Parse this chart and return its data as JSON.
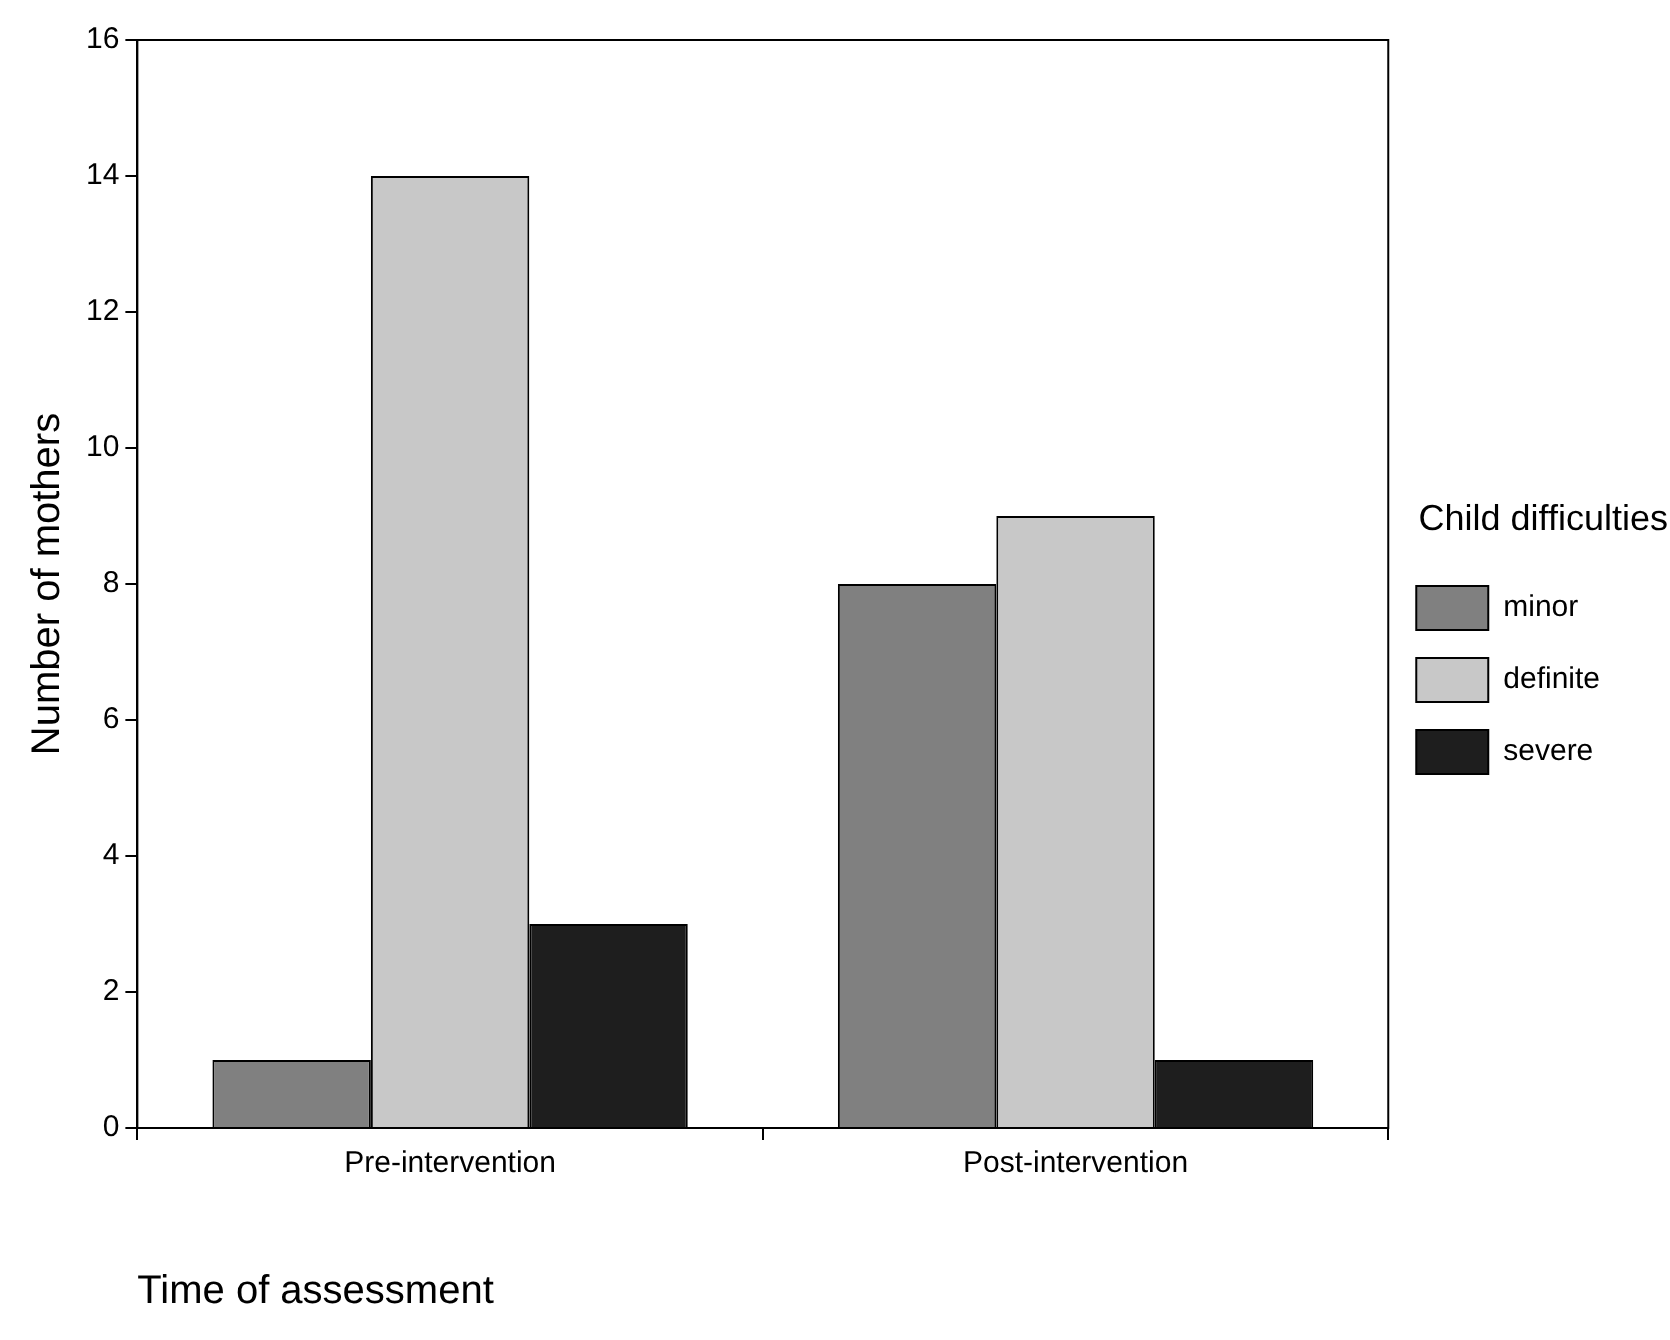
{
  "chart_data": {
    "type": "bar",
    "xlabel": "Time of assessment",
    "ylabel": "Number of mothers",
    "legend_title": "Child difficulties",
    "categories": [
      "Pre-intervention",
      "Post-intervention"
    ],
    "series": [
      {
        "name": "minor",
        "color": "#808080",
        "values": [
          1,
          8
        ]
      },
      {
        "name": "definite",
        "color": "#c8c8c8",
        "values": [
          14,
          9
        ]
      },
      {
        "name": "severe",
        "color": "#1e1e1e",
        "values": [
          3,
          1
        ]
      }
    ],
    "ylim": [
      0,
      16
    ],
    "yticks": [
      0,
      2,
      4,
      6,
      8,
      10,
      12,
      14,
      16
    ],
    "grid": false,
    "legend": "right"
  }
}
